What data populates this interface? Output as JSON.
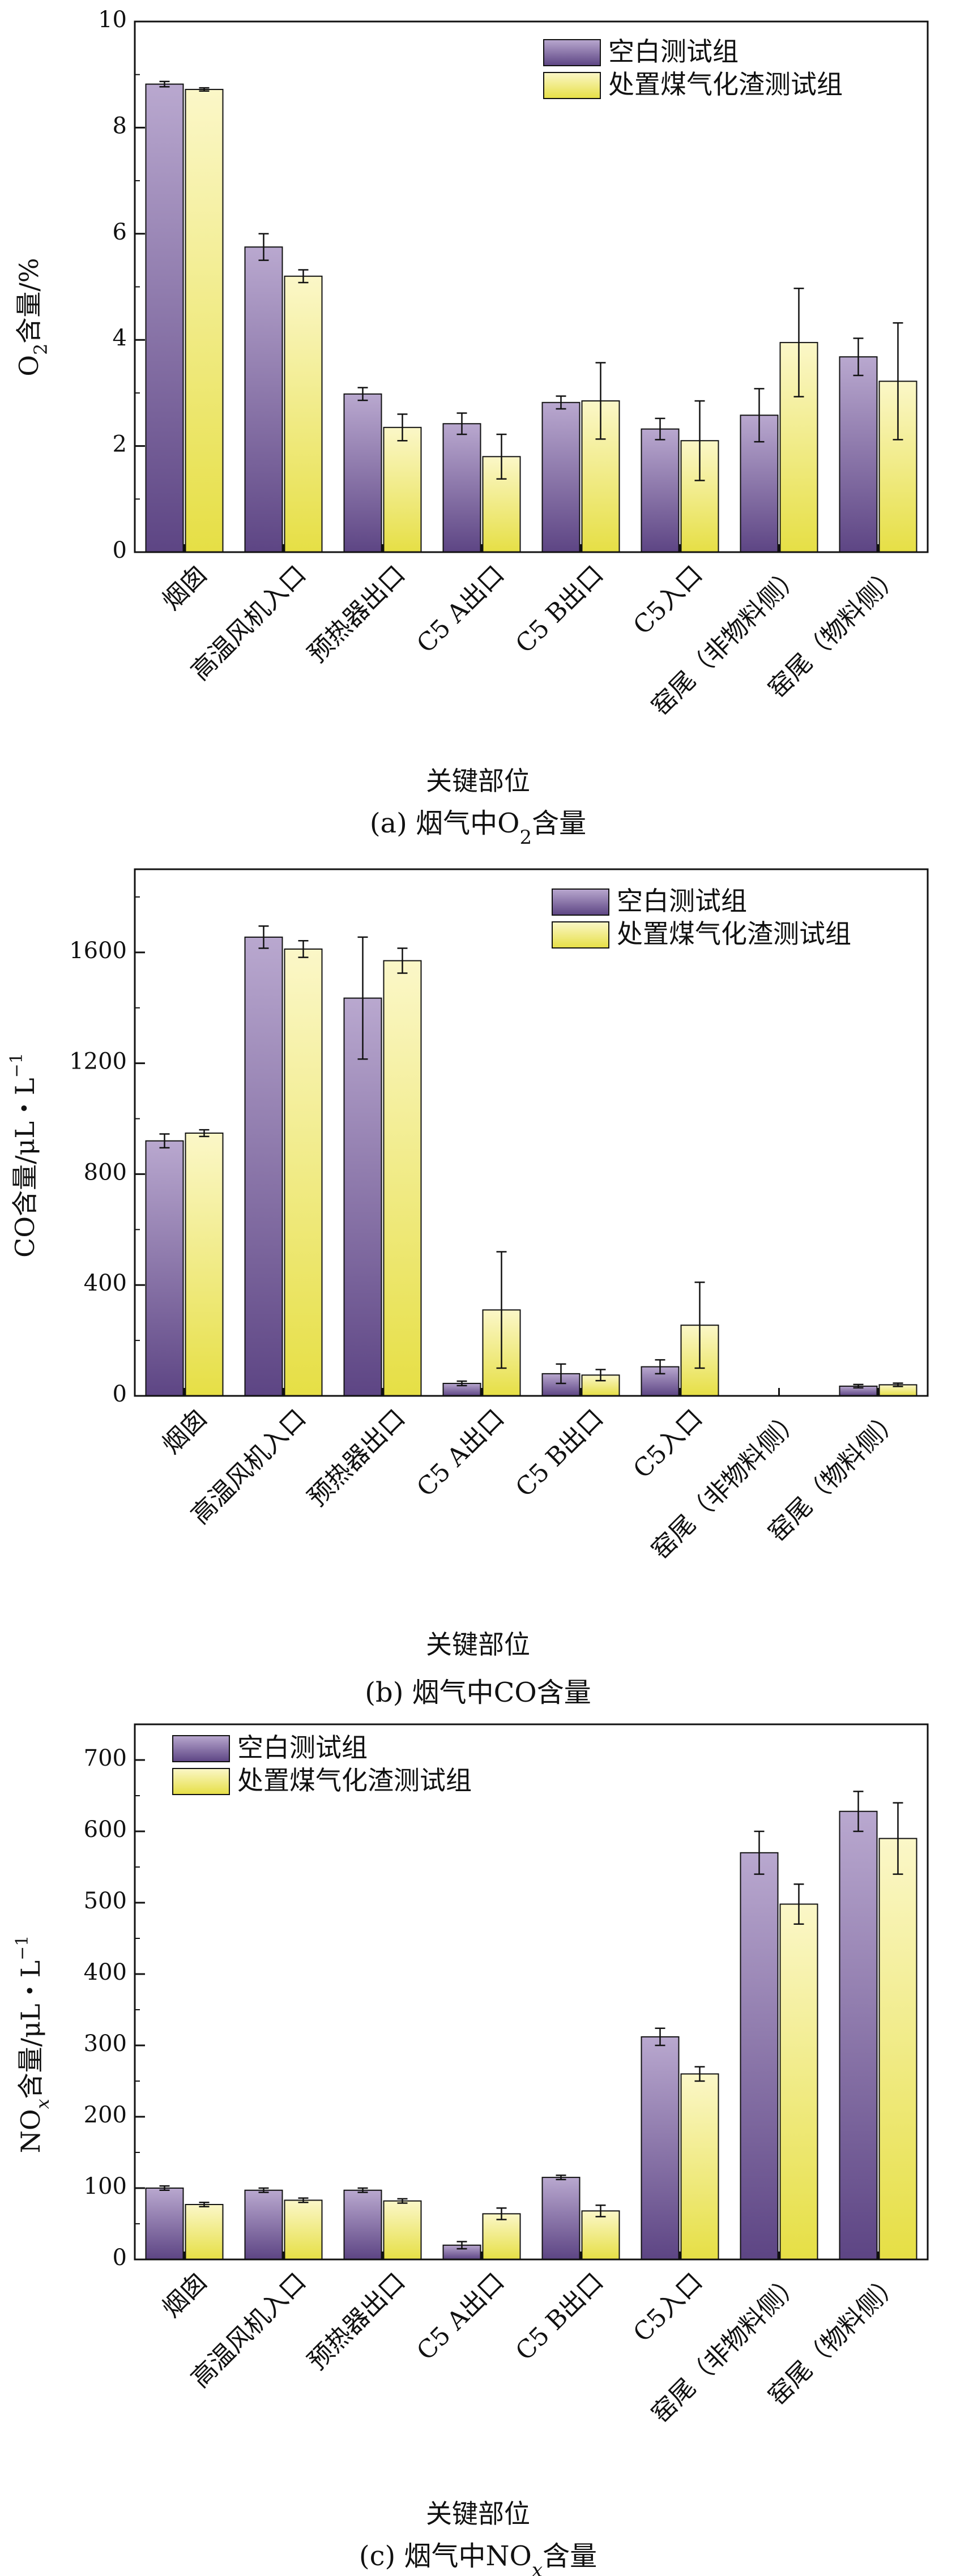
{
  "colors": {
    "blank_top": "#b9a8cf",
    "blank_bottom": "#5d4584",
    "treated_top": "#fbf7c8",
    "treated_bottom": "#e6df45",
    "axis": "#111111"
  },
  "chart_data": [
    {
      "type": "bar",
      "id": "a",
      "ylabel": "O₂含量/%",
      "ylabel_main": "O",
      "ylabel_sub": "2",
      "ylabel_rest": "含量/%",
      "xlabel": "关键部位",
      "caption_main": "(a) 烟气中O",
      "caption_sub": "2",
      "caption_rest": "含量",
      "ylim": [
        0,
        10
      ],
      "yticks": [
        "0",
        "2",
        "4",
        "6",
        "8",
        "10"
      ],
      "ytick_values": [
        0,
        2,
        4,
        6,
        8,
        10
      ],
      "minor_step": 1,
      "legend_position": "top-right",
      "categories": [
        "烟囱",
        "高温风机入口",
        "预热器出口",
        "C5 A出口",
        "C5 B出口",
        "C5入口",
        "窑尾（非物料侧）",
        "窑尾（物料侧）"
      ],
      "series": [
        {
          "name": "空白测试组",
          "values": [
            8.82,
            5.75,
            2.98,
            2.42,
            2.82,
            2.32,
            2.58,
            3.68
          ],
          "errors": [
            0.05,
            0.25,
            0.12,
            0.2,
            0.12,
            0.2,
            0.5,
            0.35
          ]
        },
        {
          "name": "处置煤气化渣测试组",
          "values": [
            8.72,
            5.2,
            2.35,
            1.8,
            2.85,
            2.1,
            3.95,
            3.22
          ],
          "errors": [
            0.03,
            0.12,
            0.25,
            0.42,
            0.72,
            0.75,
            1.02,
            1.1
          ]
        }
      ]
    },
    {
      "type": "bar",
      "id": "b",
      "ylabel": "CO含量/μL・L⁻¹",
      "ylabel_main": "CO含量/μL・L",
      "ylabel_sup": "−1",
      "xlabel": "关键部位",
      "caption_main": "(b) 烟气中CO含量",
      "ylim": [
        0,
        1900
      ],
      "yticks": [
        "0",
        "400",
        "800",
        "1200",
        "1600"
      ],
      "ytick_values": [
        0,
        400,
        800,
        1200,
        1600
      ],
      "minor_step": 200,
      "legend_position": "top-right",
      "categories": [
        "烟囱",
        "高温风机入口",
        "预热器出口",
        "C5 A出口",
        "C5 B出口",
        "C5入口",
        "窑尾（非物料侧）",
        "窑尾（物料侧）"
      ],
      "series": [
        {
          "name": "空白测试组",
          "values": [
            920,
            1655,
            1435,
            45,
            80,
            105,
            0,
            35
          ],
          "errors": [
            25,
            40,
            220,
            8,
            35,
            25,
            0,
            6
          ]
        },
        {
          "name": "处置煤气化渣测试组",
          "values": [
            948,
            1612,
            1570,
            310,
            75,
            255,
            0,
            40
          ],
          "errors": [
            12,
            30,
            45,
            210,
            20,
            155,
            0,
            6
          ]
        }
      ]
    },
    {
      "type": "bar",
      "id": "c",
      "ylabel": "NOₓ含量/μL・L⁻¹",
      "ylabel_main": "NO",
      "ylabel_sub": "x",
      "ylabel_rest": "含量/μL・L",
      "ylabel_sup": "−1",
      "xlabel": "关键部位",
      "caption_main": "(c) 烟气中NO",
      "caption_sub": "x",
      "caption_rest": "含量",
      "ylim": [
        0,
        750
      ],
      "yticks": [
        "0",
        "100",
        "200",
        "300",
        "400",
        "500",
        "600",
        "700"
      ],
      "ytick_values": [
        0,
        100,
        200,
        300,
        400,
        500,
        600,
        700
      ],
      "minor_step": 50,
      "legend_position": "top-left",
      "categories": [
        "烟囱",
        "高温风机入口",
        "预热器出口",
        "C5 A出口",
        "C5 B出口",
        "C5入口",
        "窑尾（非物料侧）",
        "窑尾（物料侧）"
      ],
      "series": [
        {
          "name": "空白测试组",
          "values": [
            100,
            97,
            97,
            20,
            115,
            312,
            570,
            628
          ],
          "errors": [
            3,
            3,
            3,
            5,
            3,
            12,
            30,
            28
          ]
        },
        {
          "name": "处置煤气化渣测试组",
          "values": [
            77,
            83,
            82,
            64,
            68,
            260,
            498,
            590
          ],
          "errors": [
            3,
            3,
            3,
            8,
            8,
            10,
            28,
            50
          ]
        }
      ]
    }
  ]
}
